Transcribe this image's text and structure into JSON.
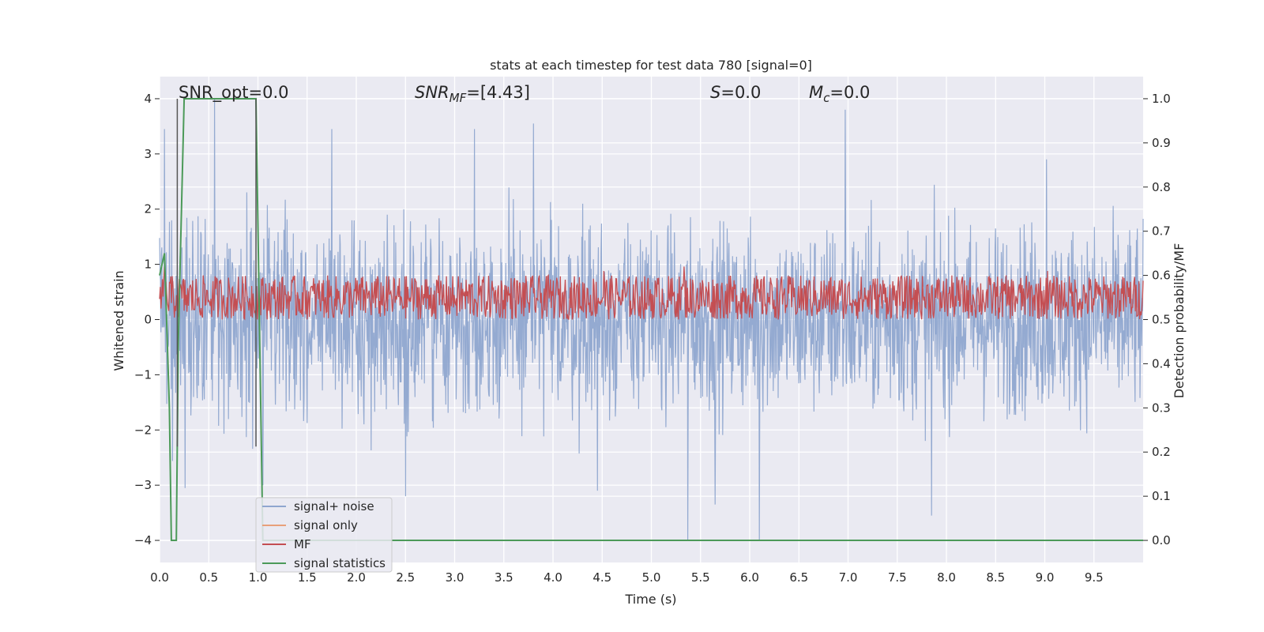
{
  "chart_data": {
    "type": "line",
    "title": "stats at each timestep for test data 780 [signal=0]",
    "xlabel": "Time (s)",
    "ylabel": "Whitened strain",
    "y2label": "Detection probability/MF",
    "xlim": [
      0,
      10
    ],
    "ylim": [
      -4.4,
      4.4
    ],
    "y2lim": [
      -0.05,
      1.05
    ],
    "x_ticks": [
      0.0,
      0.5,
      1.0,
      1.5,
      2.0,
      2.5,
      3.0,
      3.5,
      4.0,
      4.5,
      5.0,
      5.5,
      6.0,
      6.5,
      7.0,
      7.5,
      8.0,
      8.5,
      9.0,
      9.5
    ],
    "x_tick_labels": [
      "0.0",
      "0.5",
      "1.0",
      "1.5",
      "2.0",
      "2.5",
      "3.0",
      "3.5",
      "4.0",
      "4.5",
      "5.0",
      "5.5",
      "6.0",
      "6.5",
      "7.0",
      "7.5",
      "8.0",
      "8.5",
      "9.0",
      "9.5"
    ],
    "y_ticks": [
      4,
      3,
      2,
      1,
      0,
      -1,
      -2,
      -3,
      -4
    ],
    "y_tick_labels": [
      "4",
      "3",
      "2",
      "1",
      "0",
      "−1",
      "−2",
      "−3",
      "−4"
    ],
    "y2_ticks": [
      1.0,
      0.9,
      0.8,
      0.7,
      0.6,
      0.5,
      0.4,
      0.3,
      0.2,
      0.1,
      0.0
    ],
    "y2_tick_labels": [
      "1.0",
      "0.9",
      "0.8",
      "0.7",
      "0.6",
      "0.5",
      "0.4",
      "0.3",
      "0.2",
      "0.1",
      "0.0"
    ],
    "grid": true,
    "legend_position": "lower-left",
    "annotations": {
      "snr_opt": "SNR_opt=0.0",
      "snr_mf_main": "SNR",
      "snr_mf_sub": "MF",
      "snr_mf_value": "=[4.43]",
      "s_symbol": "S",
      "s_value": "=0.0",
      "mc_symbol": "M",
      "mc_sub": "c",
      "mc_value": "=0.0"
    },
    "vertical_markers_x": [
      0.18,
      0.98
    ],
    "series": [
      {
        "name": "signal+ noise",
        "color": "#8fa6cf",
        "axis": "left",
        "display_range": [
          -4.0,
          4.0
        ],
        "typical_amplitude": 1.6,
        "spikes": [
          {
            "x": 0.05,
            "y": 3.45
          },
          {
            "x": 0.56,
            "y": 4.0
          },
          {
            "x": 0.26,
            "y": -3.05
          },
          {
            "x": 1.05,
            "y": -3.0
          },
          {
            "x": 1.75,
            "y": 3.45
          },
          {
            "x": 2.5,
            "y": -3.2
          },
          {
            "x": 3.2,
            "y": 3.45
          },
          {
            "x": 3.8,
            "y": 3.55
          },
          {
            "x": 4.45,
            "y": -3.1
          },
          {
            "x": 5.37,
            "y": -4.0
          },
          {
            "x": 5.65,
            "y": -3.35
          },
          {
            "x": 6.1,
            "y": -4.0
          },
          {
            "x": 6.97,
            "y": 3.8
          },
          {
            "x": 7.85,
            "y": -3.55
          },
          {
            "x": 9.02,
            "y": 2.9
          }
        ]
      },
      {
        "name": "signal only",
        "color": "#e8a07a",
        "axis": "left",
        "values": []
      },
      {
        "name": "MF",
        "color": "#c44e52",
        "axis": "right",
        "baseline": 0.54,
        "typical_range": [
          0.5,
          0.6
        ],
        "peaks": [
          {
            "x": 0.05,
            "y": 0.62
          },
          {
            "x": 4.52,
            "y": 0.61
          },
          {
            "x": 5.33,
            "y": 0.62
          },
          {
            "x": 9.03,
            "y": 0.61
          }
        ]
      },
      {
        "name": "signal statistics",
        "color": "#4c9a59",
        "axis": "right",
        "x": [
          0.0,
          0.05,
          0.1,
          0.12,
          0.17,
          0.19,
          0.25,
          0.4,
          0.98,
          1.05,
          1.5,
          10.0
        ],
        "y": [
          0.6,
          0.65,
          0.3,
          0.0,
          0.0,
          0.45,
          1.0,
          1.0,
          1.0,
          0.0,
          0.0,
          0.0
        ]
      }
    ]
  }
}
